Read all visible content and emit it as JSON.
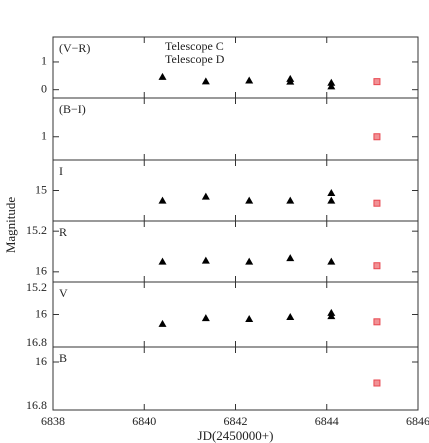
{
  "ylabel": "Magnitude",
  "chart_data": [
    {
      "type": "scatter",
      "label": "(V−R)",
      "ylim": [
        -0.3,
        1.9
      ],
      "yticks": [
        0,
        1
      ],
      "series": [
        {
          "name": "Telescope C",
          "color": "#e8474f",
          "marker": "square",
          "x": [
            6845.1
          ],
          "values": [
            0.29
          ]
        },
        {
          "name": "Telescope D",
          "color": "#000000",
          "marker": "triangle",
          "x": [
            6840.4,
            6841.35,
            6842.3,
            6843.2,
            6843.2,
            6844.1,
            6844.1
          ],
          "values": [
            0.46,
            0.3,
            0.33,
            0.39,
            0.29,
            0.25,
            0.12
          ]
        }
      ]
    },
    {
      "type": "scatter",
      "label": "(B−I)",
      "ylim": [
        0.4,
        2.0
      ],
      "yticks": [
        1
      ],
      "series": [
        {
          "color": "#e8474f",
          "marker": "square",
          "x": [
            6845.1
          ],
          "values": [
            1.0
          ]
        }
      ]
    },
    {
      "type": "scatter",
      "label": "I",
      "ylim": [
        15.6,
        14.4
      ],
      "yticks": [
        15
      ],
      "series": [
        {
          "color": "#e8474f",
          "marker": "square",
          "x": [
            6845.1
          ],
          "values": [
            15.25
          ]
        },
        {
          "color": "#000000",
          "marker": "triangle",
          "x": [
            6840.4,
            6841.35,
            6842.3,
            6843.2,
            6844.1,
            6844.1
          ],
          "values": [
            15.2,
            15.12,
            15.2,
            15.2,
            15.05,
            15.2
          ]
        }
      ]
    },
    {
      "type": "scatter",
      "label": "R",
      "ylim": [
        16.2,
        15.0
      ],
      "yticks": [
        15.2,
        16
      ],
      "series": [
        {
          "color": "#e8474f",
          "marker": "square",
          "x": [
            6845.1
          ],
          "values": [
            15.88
          ]
        },
        {
          "color": "#000000",
          "marker": "triangle",
          "x": [
            6840.4,
            6841.35,
            6842.3,
            6843.2,
            6844.1
          ],
          "values": [
            15.8,
            15.78,
            15.8,
            15.73,
            15.8
          ]
        }
      ]
    },
    {
      "type": "scatter",
      "label": "V",
      "ylim": [
        16.8,
        15.2
      ],
      "yticks": [
        15.2,
        16,
        16.8
      ],
      "series": [
        {
          "color": "#e8474f",
          "marker": "square",
          "x": [
            6845.1
          ],
          "values": [
            16.18
          ]
        },
        {
          "color": "#000000",
          "marker": "triangle",
          "x": [
            6840.4,
            6841.35,
            6842.3,
            6843.2,
            6844.1,
            6844.1
          ],
          "values": [
            16.23,
            16.09,
            16.11,
            16.06,
            15.96,
            16.04
          ]
        }
      ]
    },
    {
      "type": "scatter",
      "label": "B",
      "ylim": [
        16.8,
        15.75
      ],
      "yticks": [
        16,
        16.8
      ],
      "xlabel": "JD(2450000+)",
      "xlim": [
        6838,
        6846
      ],
      "xticks": [
        6838,
        6840,
        6842,
        6844,
        6846
      ],
      "series": [
        {
          "color": "#e8474f",
          "marker": "square",
          "x": [
            6845.1
          ],
          "values": [
            16.35
          ]
        }
      ]
    }
  ]
}
